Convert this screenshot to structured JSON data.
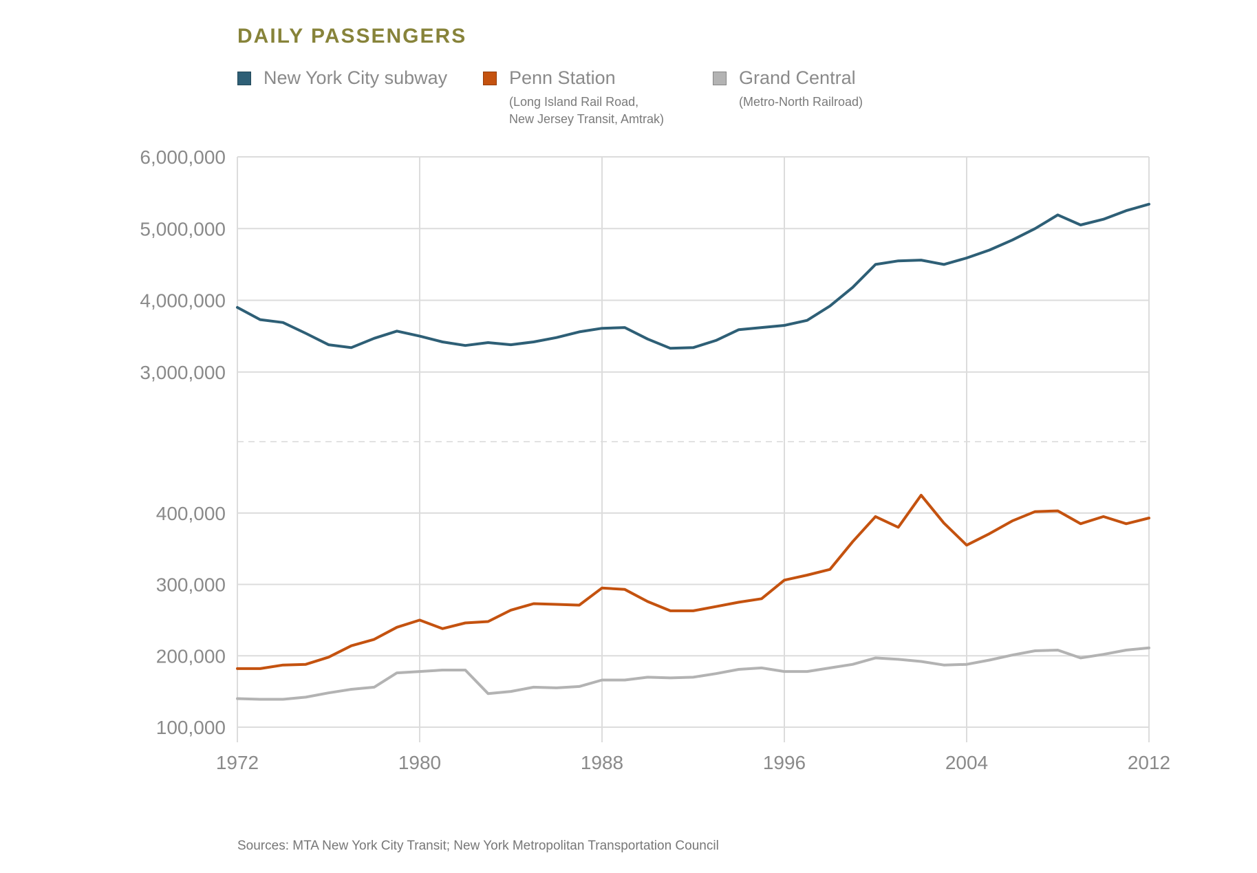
{
  "chart_data": {
    "type": "line",
    "title": "DAILY PASSENGERS",
    "source": "Sources: MTA New York City Transit; New York Metropolitan Transportation Council",
    "x": [
      1972,
      1973,
      1974,
      1975,
      1976,
      1977,
      1978,
      1979,
      1980,
      1981,
      1982,
      1983,
      1984,
      1985,
      1986,
      1987,
      1988,
      1989,
      1990,
      1991,
      1992,
      1993,
      1994,
      1995,
      1996,
      1997,
      1998,
      1999,
      2000,
      2001,
      2002,
      2003,
      2004,
      2005,
      2006,
      2007,
      2008,
      2009,
      2010,
      2011,
      2012
    ],
    "x_ticks": [
      1972,
      1980,
      1988,
      1996,
      2004,
      2012
    ],
    "xlim": [
      1972,
      2012
    ],
    "upper_panel": {
      "ylim": [
        2000000,
        6000000
      ],
      "ticks": [
        3000000,
        4000000,
        5000000,
        6000000
      ],
      "tick_labels": [
        "3,000,000",
        "4,000,000",
        "5,000,000",
        "6,000,000"
      ]
    },
    "lower_panel": {
      "ylim": [
        100000,
        500000
      ],
      "ticks": [
        100000,
        200000,
        300000,
        400000
      ],
      "tick_labels": [
        "100,000",
        "200,000",
        "300,000",
        "400,000"
      ]
    },
    "x_tick_labels": [
      "1972",
      "1980",
      "1988",
      "1996",
      "2004",
      "2012"
    ],
    "grid": true,
    "legend_position": "top",
    "series": [
      {
        "name": "New York City subway",
        "note": "",
        "panel": "upper",
        "color": "#2e5f76",
        "values": [
          3900000,
          3730000,
          3690000,
          3540000,
          3380000,
          3340000,
          3470000,
          3570000,
          3500000,
          3420000,
          3370000,
          3410000,
          3380000,
          3420000,
          3480000,
          3560000,
          3610000,
          3620000,
          3460000,
          3330000,
          3340000,
          3440000,
          3590000,
          3620000,
          3650000,
          3720000,
          3920000,
          4180000,
          4500000,
          4550000,
          4560000,
          4500000,
          4590000,
          4700000,
          4840000,
          5000000,
          5190000,
          5050000,
          5130000,
          5250000,
          5340000
        ]
      },
      {
        "name": "Penn Station",
        "note": "(Long Island Rail Road,\nNew Jersey Transit, Amtrak)",
        "panel": "lower",
        "color": "#c4520f",
        "values": [
          182000,
          182000,
          187000,
          188000,
          198000,
          214000,
          223000,
          240000,
          250000,
          238000,
          246000,
          248000,
          264000,
          273000,
          272000,
          271000,
          295000,
          293000,
          276000,
          263000,
          263000,
          269000,
          275000,
          280000,
          306000,
          313000,
          321000,
          360000,
          395000,
          380000,
          425000,
          386000,
          355000,
          371000,
          389000,
          402000,
          403000,
          385000,
          395000,
          385000,
          393000
        ]
      },
      {
        "name": "Grand Central",
        "note": "(Metro-North Railroad)",
        "panel": "lower",
        "color": "#b3b3b3",
        "values": [
          140000,
          139000,
          139000,
          142000,
          148000,
          153000,
          156000,
          176000,
          178000,
          180000,
          180000,
          147000,
          150000,
          156000,
          155000,
          157000,
          166000,
          166000,
          170000,
          169000,
          170000,
          175000,
          181000,
          183000,
          178000,
          178000,
          183000,
          188000,
          197000,
          195000,
          192000,
          187000,
          188000,
          194000,
          201000,
          207000,
          208000,
          197000,
          202000,
          208000,
          211000
        ]
      }
    ]
  }
}
